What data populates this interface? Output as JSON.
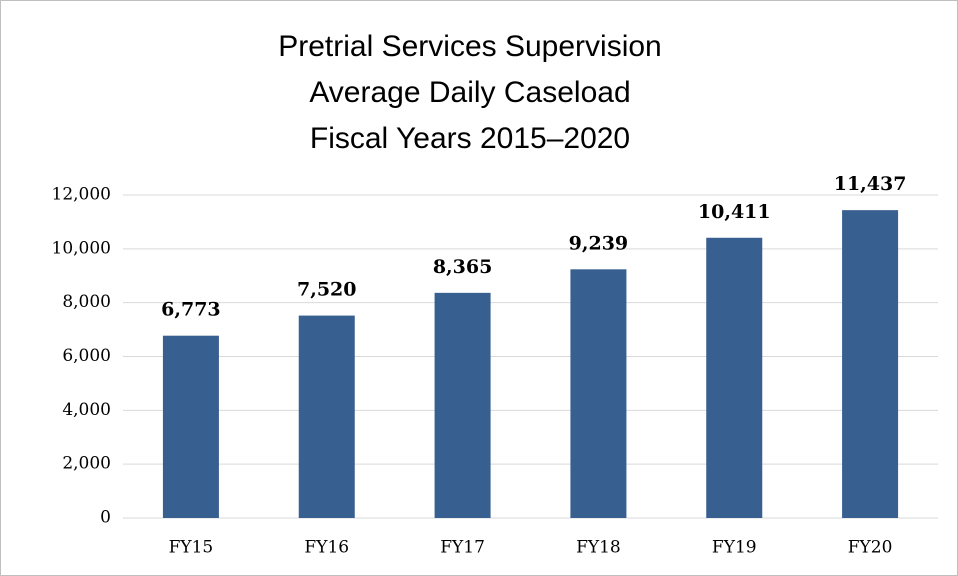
{
  "chart_data": {
    "type": "bar",
    "title": [
      "Pretrial Services Supervision",
      "Average Daily Caseload",
      "Fiscal Years 2015–2020"
    ],
    "categories": [
      "FY15",
      "FY16",
      "FY17",
      "FY18",
      "FY19",
      "FY20"
    ],
    "values": [
      6773,
      7520,
      8365,
      9239,
      10411,
      11437
    ],
    "value_labels": [
      "6,773",
      "7,520",
      "8,365",
      "9,239",
      "10,411",
      "11,437"
    ],
    "color": "#375f8f",
    "ylim": [
      0,
      12000
    ],
    "yticks": [
      0,
      {
        "value": 2000,
        "label": "2,000"
      },
      {
        "value": 4000,
        "label": "4,000"
      },
      {
        "value": 6000,
        "label": "6,000"
      },
      {
        "value": 8000,
        "label": "8,000"
      },
      {
        "value": 10000,
        "label": "10,000"
      },
      {
        "value": 12000,
        "label": "12,000"
      }
    ],
    "grid": true
  }
}
